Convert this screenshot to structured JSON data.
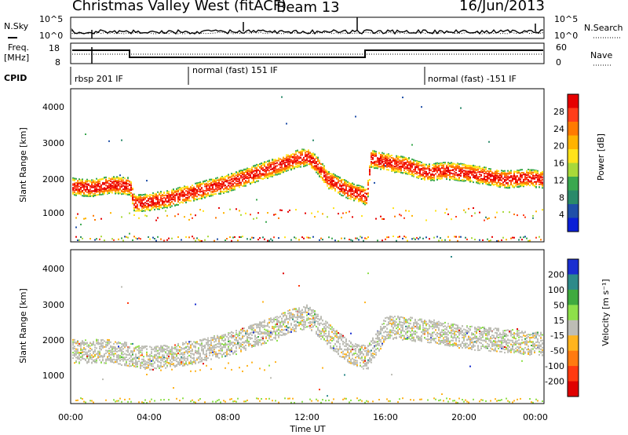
{
  "header": {
    "title": "Christmas Valley West (fitACF)",
    "beam": "Beam 13",
    "date": "16/Jun/2013"
  },
  "top_panels": {
    "nsky_label": "N.Sky",
    "nsearch_label": "N.Search",
    "noise_ticks": [
      "10^5",
      "10^0"
    ],
    "freq_label_line1": "Freq.",
    "freq_label_line2": "[MHz]",
    "freq_ticks": [
      "18",
      "8"
    ],
    "nave_ticks": [
      "60",
      "0"
    ],
    "nave_label": "Nave",
    "cpid_label": "CPID",
    "cpid_segments": [
      {
        "label": "rbsp 201 IF",
        "start_hr": 0
      },
      {
        "label": "normal (fast) 151 IF",
        "start_hr": 6
      },
      {
        "label": "normal (fast) -151 IF",
        "start_hr": 18
      }
    ]
  },
  "x_axis": {
    "label": "Time UT",
    "ticks": [
      "00:00",
      "04:00",
      "08:00",
      "12:00",
      "16:00",
      "20:00",
      "00:00"
    ]
  },
  "power_panel": {
    "ylabel": "Slant Range [km]",
    "yticks": [
      "4000",
      "3000",
      "2000",
      "1000"
    ],
    "cbar_label": "Power [dB]",
    "cbar_ticks": [
      "28",
      "24",
      "20",
      "16",
      "12",
      "8",
      "4"
    ],
    "cbar_colors": [
      "#e60000",
      "#ff3d1a",
      "#ff7a00",
      "#ffb300",
      "#ffe31a",
      "#a8d93a",
      "#3aa84f",
      "#2a8a6a",
      "#1f4fa8",
      "#0a1fd6"
    ]
  },
  "velocity_panel": {
    "ylabel": "Slant Range [km]",
    "yticks": [
      "4000",
      "3000",
      "2000",
      "1000"
    ],
    "cbar_label": "Velocity [m s⁻¹]",
    "cbar_ticks": [
      "200",
      "100",
      "50",
      "15",
      "-15",
      "-50",
      "-100",
      "-200"
    ],
    "cbar_colors": [
      "#1a2fd0",
      "#2e8a8a",
      "#3faa3f",
      "#8ee04a",
      "#bdbdb5",
      "#ffb41e",
      "#ff7a10",
      "#ff3a10",
      "#e00000"
    ]
  },
  "chart_data": {
    "type": "heatmap",
    "x_range_hours": [
      0,
      24
    ],
    "y_range_km": [
      180,
      4600
    ],
    "power_main_band": {
      "t_hours": [
        0,
        1,
        2,
        3,
        3.2,
        4,
        5,
        6,
        7,
        8,
        9,
        10,
        11,
        11.5,
        12,
        12.5,
        13,
        14,
        15,
        15.2,
        16,
        17,
        18,
        19,
        20,
        21,
        22,
        23,
        24
      ],
      "range_km": [
        1800,
        1750,
        1850,
        1800,
        1300,
        1350,
        1450,
        1600,
        1750,
        1900,
        2100,
        2300,
        2500,
        2600,
        2650,
        2400,
        2000,
        1700,
        1500,
        2600,
        2500,
        2400,
        2200,
        2250,
        2200,
        2100,
        2000,
        2050,
        2000
      ]
    },
    "velocity_main_band": {
      "t_hours": [
        0,
        2,
        4,
        6,
        8,
        10,
        11,
        12,
        13,
        14,
        15,
        16,
        18,
        20,
        22,
        24
      ],
      "range_km": [
        1700,
        1700,
        1500,
        1650,
        1900,
        2300,
        2550,
        2700,
        2200,
        1700,
        1500,
        2400,
        2300,
        2100,
        2000,
        1900
      ]
    }
  }
}
